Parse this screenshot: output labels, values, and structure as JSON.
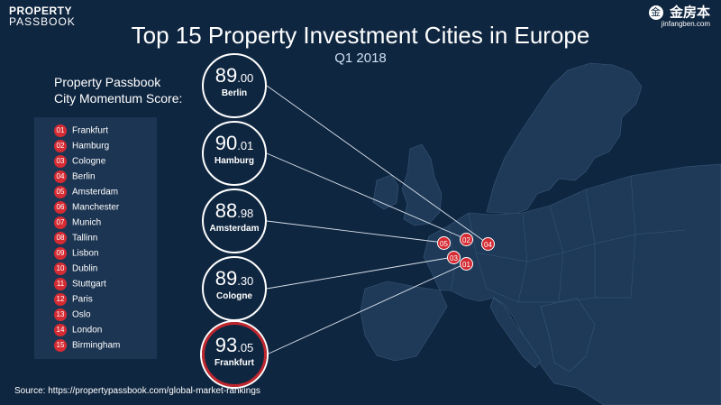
{
  "brand": {
    "line1": "PROPERTY",
    "line2": "PASSBOOK"
  },
  "partner": {
    "icon_char": "金",
    "name": "金房本",
    "url": "jinfangben.com"
  },
  "title": "Top 15 Property Investment Cities in Europe",
  "subtitle": "Q1 2018",
  "score_label": {
    "line1": "Property Passbook",
    "line2": "City Momentum Score:"
  },
  "legend": [
    {
      "num": "01",
      "city": "Frankfurt"
    },
    {
      "num": "02",
      "city": "Hamburg"
    },
    {
      "num": "03",
      "city": "Cologne"
    },
    {
      "num": "04",
      "city": "Berlin"
    },
    {
      "num": "05",
      "city": "Amsterdam"
    },
    {
      "num": "06",
      "city": "Manchester"
    },
    {
      "num": "07",
      "city": "Munich"
    },
    {
      "num": "08",
      "city": "Tallinn"
    },
    {
      "num": "09",
      "city": "Lisbon"
    },
    {
      "num": "10",
      "city": "Dublin"
    },
    {
      "num": "11",
      "city": "Stuttgart"
    },
    {
      "num": "12",
      "city": "Paris"
    },
    {
      "num": "13",
      "city": "Oslo"
    },
    {
      "num": "14",
      "city": "London"
    },
    {
      "num": "15",
      "city": "Birmingham"
    }
  ],
  "scores": [
    {
      "int": "89",
      "dec": ".00",
      "city": "Berlin"
    },
    {
      "int": "90",
      "dec": ".01",
      "city": "Hamburg"
    },
    {
      "int": "88",
      "dec": ".98",
      "city": "Amsterdam"
    },
    {
      "int": "89",
      "dec": ".30",
      "city": "Cologne"
    },
    {
      "int": "93",
      "dec": ".05",
      "city": "Frankfurt"
    }
  ],
  "markers": [
    "04",
    "02",
    "05",
    "03",
    "01"
  ],
  "source": "Source: https://propertypassbook.com/global-market-rankings",
  "colors": {
    "background": "#0f2640",
    "land": "#1e3a58",
    "marker": "#d52b33",
    "legend_bg": "#1c3552"
  }
}
